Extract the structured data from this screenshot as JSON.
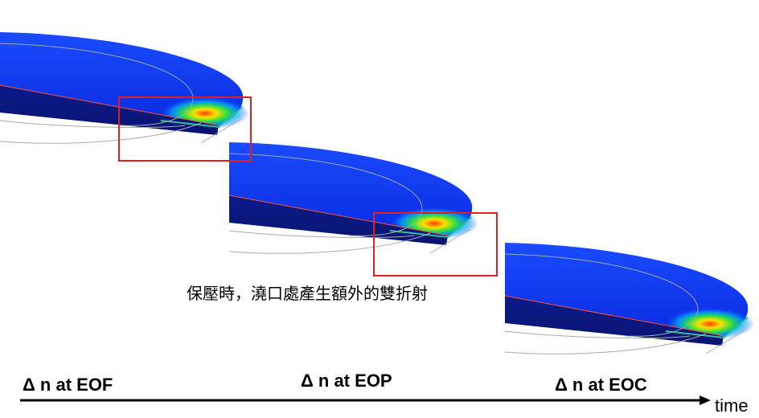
{
  "annotation": "保壓時，澆口處產生額外的雙折射",
  "stages": [
    {
      "label": "Δ n at EOF"
    },
    {
      "label": "Δ n at EOP"
    },
    {
      "label": "Δ n at EOC"
    }
  ],
  "axis": {
    "label": "time"
  }
}
